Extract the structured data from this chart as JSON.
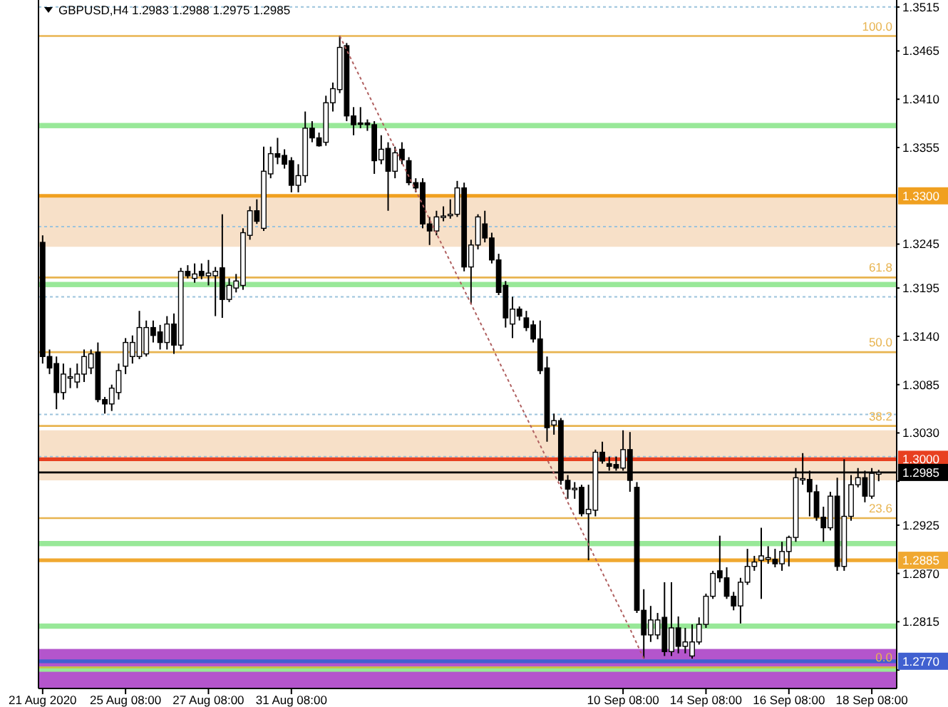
{
  "chart_data": {
    "type": "candlestick",
    "title": "GBPUSD,H4  1.2983 1.2988 1.2975 1.2985",
    "color": "#000000",
    "categories": [
      "21 Aug 2020",
      null,
      null,
      null,
      null,
      null,
      null,
      null,
      null,
      null,
      null,
      null,
      "25 Aug 08:00",
      null,
      null,
      null,
      null,
      null,
      null,
      null,
      null,
      null,
      null,
      null,
      "27 Aug 08:00",
      null,
      null,
      null,
      null,
      null,
      null,
      null,
      null,
      null,
      null,
      null,
      "31 Aug 08:00",
      null,
      null,
      null,
      null,
      null,
      null,
      null,
      null,
      null,
      null,
      null,
      null,
      null,
      null,
      null,
      null,
      null,
      null,
      null,
      null,
      null,
      null,
      null,
      null,
      null,
      null,
      null,
      null,
      null,
      null,
      null,
      null,
      null,
      null,
      null,
      null,
      null,
      null,
      null,
      null,
      null,
      null,
      null,
      null,
      null,
      null,
      null,
      "10 Sep 08:00",
      null,
      null,
      null,
      null,
      null,
      null,
      null,
      null,
      null,
      null,
      null,
      "14 Sep 08:00",
      null,
      null,
      null,
      null,
      null,
      null,
      null,
      null,
      null,
      null,
      null,
      "16 Sep 08:00",
      null,
      null,
      null,
      null,
      null,
      null,
      null,
      null,
      null,
      null,
      null,
      "18 Sep 08:00",
      null
    ],
    "ohlc": [
      [
        1.3247,
        1.3255,
        1.3109,
        1.3117
      ],
      [
        1.3117,
        1.3125,
        1.3097,
        1.3104
      ],
      [
        1.3109,
        1.3117,
        1.3057,
        1.3076
      ],
      [
        1.3076,
        1.3109,
        1.3068,
        1.3097
      ],
      [
        1.3093,
        1.3104,
        1.3081,
        1.3094
      ],
      [
        1.3088,
        1.3109,
        1.3081,
        1.3097
      ],
      [
        1.3097,
        1.3125,
        1.3088,
        1.3117
      ],
      [
        1.3104,
        1.3125,
        1.3097,
        1.312
      ],
      [
        1.3122,
        1.3133,
        1.3065,
        1.3068
      ],
      [
        1.3068,
        1.3071,
        1.3052,
        1.3063
      ],
      [
        1.3063,
        1.3085,
        1.3055,
        1.3081
      ],
      [
        1.3076,
        1.3109,
        1.3068,
        1.3101
      ],
      [
        1.3106,
        1.3138,
        1.3097,
        1.3133
      ],
      [
        1.3117,
        1.3141,
        1.3109,
        1.3133
      ],
      [
        1.3117,
        1.3169,
        1.3114,
        1.315
      ],
      [
        1.312,
        1.3158,
        1.3117,
        1.315
      ],
      [
        1.315,
        1.3158,
        1.3133,
        1.3141
      ],
      [
        1.3145,
        1.3153,
        1.3125,
        1.3133
      ],
      [
        1.3133,
        1.3163,
        1.3125,
        1.3154
      ],
      [
        1.3154,
        1.3166,
        1.312,
        1.313
      ],
      [
        1.313,
        1.3218,
        1.3125,
        1.3214
      ],
      [
        1.3214,
        1.3221,
        1.3206,
        1.3209
      ],
      [
        1.3206,
        1.3223,
        1.3201,
        1.3211
      ],
      [
        1.3214,
        1.3223,
        1.3205,
        1.3209
      ],
      [
        1.3209,
        1.3227,
        1.3198,
        1.3212
      ],
      [
        1.3209,
        1.3219,
        1.3163,
        1.3214
      ],
      [
        1.3218,
        1.3279,
        1.3161,
        1.3182
      ],
      [
        1.3182,
        1.3206,
        1.3179,
        1.3198
      ],
      [
        1.3195,
        1.3211,
        1.319,
        1.3203
      ],
      [
        1.3198,
        1.3263,
        1.3193,
        1.3258
      ],
      [
        1.3255,
        1.3288,
        1.325,
        1.3283
      ],
      [
        1.3283,
        1.3296,
        1.3268,
        1.3271
      ],
      [
        1.3263,
        1.3356,
        1.326,
        1.3328
      ],
      [
        1.3325,
        1.3356,
        1.332,
        1.3348
      ],
      [
        1.3348,
        1.3366,
        1.3336,
        1.3344
      ],
      [
        1.3346,
        1.3353,
        1.3331,
        1.3336
      ],
      [
        1.334,
        1.3344,
        1.3304,
        1.3312
      ],
      [
        1.3312,
        1.3336,
        1.3304,
        1.3323
      ],
      [
        1.3323,
        1.3396,
        1.3315,
        1.3377
      ],
      [
        1.3377,
        1.3385,
        1.3361,
        1.3366
      ],
      [
        1.3366,
        1.3372,
        1.3356,
        1.3357
      ],
      [
        1.3361,
        1.3414,
        1.3357,
        1.3406
      ],
      [
        1.3406,
        1.3429,
        1.3396,
        1.3422
      ],
      [
        1.3421,
        1.3482,
        1.3417,
        1.3469
      ],
      [
        1.3471,
        1.3474,
        1.3385,
        1.3391
      ],
      [
        1.3391,
        1.3401,
        1.3369,
        1.3381
      ],
      [
        1.3383,
        1.3401,
        1.3377,
        1.3382
      ],
      [
        1.3383,
        1.3387,
        1.3374,
        1.3381
      ],
      [
        1.3381,
        1.3385,
        1.3325,
        1.334
      ],
      [
        1.3341,
        1.3369,
        1.3336,
        1.3353
      ],
      [
        1.3354,
        1.3361,
        1.3283,
        1.3328
      ],
      [
        1.3328,
        1.3356,
        1.332,
        1.3349
      ],
      [
        1.3353,
        1.3361,
        1.3336,
        1.3341
      ],
      [
        1.334,
        1.3344,
        1.3312,
        1.3315
      ],
      [
        1.3315,
        1.332,
        1.3304,
        1.3309
      ],
      [
        1.3315,
        1.332,
        1.3263,
        1.3268
      ],
      [
        1.3268,
        1.3276,
        1.3244,
        1.326
      ],
      [
        1.326,
        1.3283,
        1.3255,
        1.3276
      ],
      [
        1.3276,
        1.3288,
        1.3271,
        1.3277
      ],
      [
        1.3278,
        1.3296,
        1.3274,
        1.3279
      ],
      [
        1.3279,
        1.3317,
        1.3276,
        1.3309
      ],
      [
        1.3309,
        1.3315,
        1.3214,
        1.3219
      ],
      [
        1.3219,
        1.325,
        1.3177,
        1.3244
      ],
      [
        1.3244,
        1.3279,
        1.3239,
        1.3276
      ],
      [
        1.3268,
        1.3283,
        1.3247,
        1.3252
      ],
      [
        1.3252,
        1.3258,
        1.3223,
        1.3227
      ],
      [
        1.3227,
        1.3234,
        1.3187,
        1.319
      ],
      [
        1.3198,
        1.3203,
        1.315,
        1.3161
      ],
      [
        1.3154,
        1.3185,
        1.3138,
        1.3171
      ],
      [
        1.3171,
        1.3174,
        1.3158,
        1.3163
      ],
      [
        1.3161,
        1.3169,
        1.3146,
        1.315
      ],
      [
        1.3153,
        1.3158,
        1.3133,
        1.3137
      ],
      [
        1.3137,
        1.3158,
        1.3097,
        1.3101
      ],
      [
        1.3104,
        1.3117,
        1.302,
        1.3036
      ],
      [
        1.3039,
        1.3052,
        1.3028,
        1.3044
      ],
      [
        1.3044,
        1.3047,
        1.2971,
        1.2976
      ],
      [
        1.2976,
        1.2982,
        1.2955,
        1.2966
      ],
      [
        1.2966,
        1.2974,
        1.2955,
        1.2967
      ],
      [
        1.2968,
        1.2971,
        1.2935,
        1.2938
      ],
      [
        1.2938,
        1.2971,
        1.2885,
        1.2943
      ],
      [
        1.2942,
        1.3011,
        1.2935,
        1.3008
      ],
      [
        1.3008,
        1.302,
        1.2995,
        1.2998
      ],
      [
        1.2995,
        1.3003,
        1.2987,
        1.2992
      ],
      [
        1.2994,
        1.3003,
        1.2987,
        1.299
      ],
      [
        1.299,
        1.3033,
        1.2987,
        1.3011
      ],
      [
        1.3011,
        1.3031,
        1.2963,
        1.2976
      ],
      [
        1.2968,
        1.2974,
        1.2825,
        1.2828
      ],
      [
        1.2828,
        1.2852,
        1.2773,
        1.28
      ],
      [
        1.28,
        1.2833,
        1.2792,
        1.2817
      ],
      [
        1.28,
        1.2825,
        1.2795,
        1.2817
      ],
      [
        1.282,
        1.286,
        1.2776,
        1.2781
      ],
      [
        1.2781,
        1.286,
        1.2776,
        1.2808
      ],
      [
        1.2808,
        1.2821,
        1.2779,
        1.2787
      ],
      [
        1.2787,
        1.2808,
        1.2779,
        1.2792
      ],
      [
        1.2776,
        1.2812,
        1.2773,
        1.2792
      ],
      [
        1.2792,
        1.282,
        1.2789,
        1.2812
      ],
      [
        1.2812,
        1.2847,
        1.2808,
        1.2844
      ],
      [
        1.2844,
        1.2873,
        1.2841,
        1.287
      ],
      [
        1.2873,
        1.2913,
        1.286,
        1.2865
      ],
      [
        1.2865,
        1.2877,
        1.2841,
        1.2844
      ],
      [
        1.2844,
        1.2849,
        1.2828,
        1.2833
      ],
      [
        1.2833,
        1.2865,
        1.2813,
        1.286
      ],
      [
        1.286,
        1.2898,
        1.2857,
        1.2878
      ],
      [
        1.2878,
        1.289,
        1.2873,
        1.2883
      ],
      [
        1.2885,
        1.2922,
        1.2841,
        1.289
      ],
      [
        1.2886,
        1.2901,
        1.2881,
        1.2888
      ],
      [
        1.2886,
        1.2898,
        1.2877,
        1.2881
      ],
      [
        1.2881,
        1.2906,
        1.2873,
        1.2895
      ],
      [
        1.2895,
        1.2913,
        1.2878,
        1.2911
      ],
      [
        1.2911,
        1.299,
        1.2906,
        1.2979
      ],
      [
        1.2977,
        1.3007,
        1.2971,
        1.2978
      ],
      [
        1.2977,
        1.2987,
        1.2935,
        1.2963
      ],
      [
        1.2963,
        1.2971,
        1.293,
        1.2934
      ],
      [
        1.2934,
        1.2946,
        1.2906,
        1.2922
      ],
      [
        1.2922,
        1.2963,
        1.2919,
        1.2958
      ],
      [
        1.2958,
        1.2979,
        1.2873,
        1.2878
      ],
      [
        1.2878,
        1.3,
        1.2873,
        1.2935
      ],
      [
        1.2935,
        1.2982,
        1.293,
        1.2971
      ],
      [
        1.2971,
        1.299,
        1.2968,
        1.2979
      ],
      [
        1.2979,
        1.2987,
        1.2951,
        1.2958
      ],
      [
        1.2958,
        1.299,
        1.2955,
        1.2984
      ],
      [
        1.2983,
        1.2988,
        1.2975,
        1.2985
      ]
    ],
    "series": [
      {
        "type": "line",
        "color": "#b06060",
        "line_style": "dotted",
        "values": [
          null,
          null,
          null,
          null,
          null,
          null,
          null,
          null,
          null,
          null,
          null,
          null,
          null,
          null,
          null,
          null,
          null,
          null,
          null,
          null,
          null,
          null,
          null,
          null,
          null,
          null,
          null,
          null,
          null,
          null,
          null,
          null,
          null,
          null,
          null,
          null,
          null,
          null,
          null,
          null,
          null,
          null,
          null,
          1.3482,
          1.3466,
          1.345,
          1.3434,
          1.3418,
          1.3402,
          1.3386,
          1.337,
          1.3354,
          1.3338,
          1.3322,
          1.3306,
          1.329,
          1.3273,
          1.3257,
          1.3241,
          1.3225,
          1.3209,
          1.3193,
          1.3177,
          1.3161,
          1.3145,
          1.3129,
          1.3112,
          1.3096,
          1.308,
          1.3064,
          1.3048,
          1.3032,
          1.3016,
          1.3,
          1.2984,
          1.2968,
          1.2951,
          1.2935,
          1.2919,
          1.2903,
          1.2887,
          1.2871,
          1.2855,
          1.2839,
          1.2823,
          1.2807,
          1.279,
          1.2773,
          null,
          null,
          null,
          null,
          null,
          null,
          null,
          null,
          null,
          null,
          null,
          null,
          null,
          null,
          null,
          null,
          null,
          null,
          null,
          null,
          null,
          null,
          null,
          null,
          null,
          null,
          null,
          null,
          null,
          null,
          null,
          null,
          null,
          null
        ]
      }
    ],
    "bands": [
      {
        "axis": "y",
        "from": 1.2739,
        "to": 1.2784,
        "color": "#b455cc"
      },
      {
        "axis": "y",
        "from": 1.3242,
        "to": 1.3299,
        "color": "#f7e0c8"
      },
      {
        "axis": "y",
        "from": 1.2976,
        "to": 1.3033,
        "color": "#f7e0c8"
      },
      {
        "axis": "y",
        "from": 1.3377,
        "to": 1.3383,
        "color": "#98e898"
      },
      {
        "axis": "y",
        "from": 1.3196,
        "to": 1.3202,
        "color": "#98e898"
      },
      {
        "axis": "y",
        "from": 1.2901,
        "to": 1.2907,
        "color": "#98e898"
      },
      {
        "axis": "y",
        "from": 1.2807,
        "to": 1.2813,
        "color": "#98e898"
      },
      {
        "axis": "y",
        "from": 1.2758,
        "to": 1.2764,
        "color": "#98e898"
      }
    ],
    "ref_lines": [
      {
        "axis": "y",
        "value": 1.3515,
        "color": "#9cc3dc",
        "line_style": "dotted"
      },
      {
        "axis": "y",
        "value": 1.3265,
        "color": "#9cc3dc",
        "line_style": "dotted"
      },
      {
        "axis": "y",
        "value": 1.3185,
        "color": "#9cc3dc",
        "line_style": "dotted"
      },
      {
        "axis": "y",
        "value": 1.3051,
        "color": "#9cc3dc",
        "line_style": "dotted"
      },
      {
        "axis": "y",
        "value": 1.3003,
        "color": "#9cc3dc",
        "line_style": "dotted"
      },
      {
        "axis": "y",
        "value": 1.3482,
        "color": "#e8b450"
      },
      {
        "axis": "y",
        "value": 1.3207,
        "color": "#e8b450"
      },
      {
        "axis": "y",
        "value": 1.3122,
        "color": "#e8b450"
      },
      {
        "axis": "y",
        "value": 1.3038,
        "color": "#e8b450"
      },
      {
        "axis": "y",
        "value": 1.2933,
        "color": "#e8b450"
      },
      {
        "axis": "y",
        "value": 1.2763,
        "color": "#c8c040"
      },
      {
        "axis": "y",
        "value": 1.33,
        "label": "1.3300",
        "color": "#f0a020",
        "line_style": "solid"
      },
      {
        "axis": "y",
        "value": 1.3,
        "label": "1.3000",
        "color": "#e84020",
        "line_style": "solid"
      },
      {
        "axis": "y",
        "value": 1.2885,
        "label": "1.2885",
        "color": "#f0a830",
        "line_style": "solid"
      },
      {
        "axis": "y",
        "value": 1.277,
        "label": "1.2770",
        "color": "#4060d0",
        "line_style": "solid"
      },
      {
        "axis": "y",
        "value": 1.2985,
        "label": "1.2985",
        "color": "#000000"
      }
    ],
    "annotations": [
      {
        "text": "100.0",
        "y": 1.3482
      },
      {
        "text": "61.8",
        "y": 1.3207
      },
      {
        "text": "50.0",
        "y": 1.3122
      },
      {
        "text": "38.2",
        "y": 1.3038
      },
      {
        "text": "23.6",
        "y": 1.2933
      },
      {
        "text": "0.0",
        "y": 1.2763
      }
    ],
    "ylim": [
      1.2739,
      1.3523
    ],
    "yticks": [
      {
        "value": 1.3515,
        "label": "1.3515"
      },
      {
        "value": 1.3465,
        "label": "1.3465"
      },
      {
        "value": 1.341,
        "label": "1.3410"
      },
      {
        "value": 1.3355,
        "label": "1.3355"
      },
      {
        "value": 1.3245,
        "label": "1.3245"
      },
      {
        "value": 1.3195,
        "label": "1.3195"
      },
      {
        "value": 1.314,
        "label": "1.3140"
      },
      {
        "value": 1.3085,
        "label": "1.3085"
      },
      {
        "value": 1.303,
        "label": "1.3030"
      },
      {
        "value": 1.2975,
        "label": null
      },
      {
        "value": 1.2925,
        "label": "1.2925"
      },
      {
        "value": 1.287,
        "label": "1.2870"
      },
      {
        "value": 1.2815,
        "label": "1.2815"
      },
      {
        "value": 1.276,
        "label": null
      }
    ]
  }
}
